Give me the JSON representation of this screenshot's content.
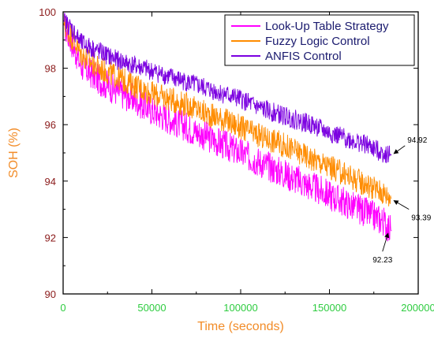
{
  "chart_data": {
    "type": "line",
    "title": "",
    "xlabel": "Time (seconds)",
    "ylabel": "SOH (%)",
    "xlim": [
      0,
      200000
    ],
    "ylim": [
      90,
      100
    ],
    "x_ticks": [
      "0",
      "50000",
      "100000",
      "150000",
      "200000"
    ],
    "y_ticks": [
      "90",
      "92",
      "94",
      "96",
      "98",
      "100"
    ],
    "grid": false,
    "legend_position": "top-right",
    "x": [
      0,
      5000,
      10000,
      20000,
      30000,
      40000,
      50000,
      60000,
      70000,
      80000,
      90000,
      100000,
      110000,
      120000,
      130000,
      140000,
      150000,
      160000,
      170000,
      180000,
      185000
    ],
    "series": [
      {
        "name": "Look-Up Table Strategy",
        "color": "#ff00ff",
        "values": [
          99.6,
          98.9,
          98.1,
          97.6,
          97.2,
          96.9,
          96.5,
          96.2,
          95.9,
          95.6,
          95.3,
          95.0,
          94.7,
          94.4,
          94.1,
          93.8,
          93.5,
          93.2,
          92.9,
          92.6,
          92.23
        ]
      },
      {
        "name": "Fuzzy Logic Control",
        "color": "#ff8c00",
        "values": [
          99.6,
          99.1,
          98.5,
          98.0,
          97.7,
          97.4,
          97.1,
          96.9,
          96.7,
          96.4,
          96.2,
          95.9,
          95.6,
          95.4,
          95.1,
          94.8,
          94.5,
          94.2,
          93.9,
          93.6,
          93.39
        ]
      },
      {
        "name": "ANFIS Control",
        "color": "#7b00e0",
        "values": [
          99.7,
          99.4,
          98.9,
          98.6,
          98.3,
          98.1,
          97.9,
          97.7,
          97.5,
          97.3,
          97.1,
          96.9,
          96.6,
          96.4,
          96.2,
          96.0,
          95.7,
          95.5,
          95.3,
          95.0,
          94.92
        ]
      }
    ],
    "annotations": [
      {
        "text": "94.92",
        "x": 185000,
        "y": 94.92
      },
      {
        "text": "93.39",
        "x": 185000,
        "y": 93.39
      },
      {
        "text": "92.23",
        "x": 183000,
        "y": 92.23
      }
    ]
  }
}
